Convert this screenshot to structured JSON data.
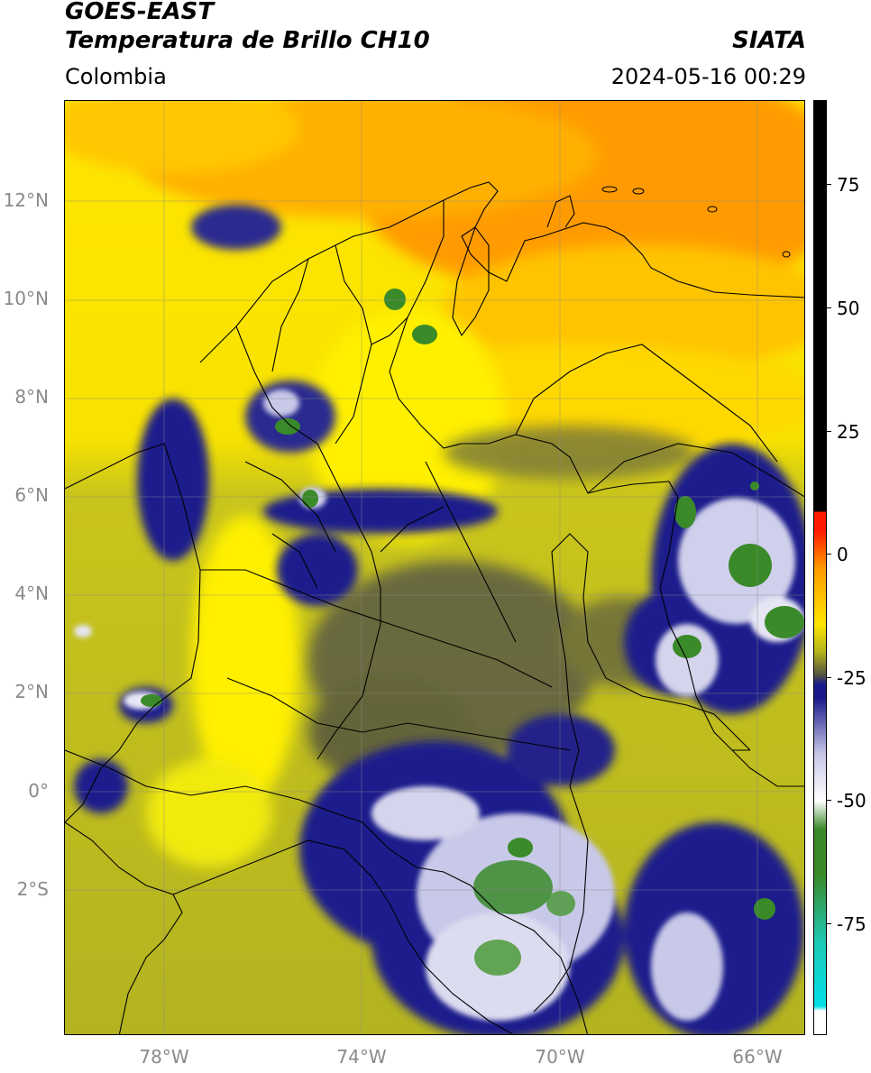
{
  "header": {
    "satellite": "GOES-EAST",
    "product": "Temperatura de Brillo CH10",
    "organization": "SIATA",
    "region": "Colombia",
    "datetime": "2024-05-16 00:29"
  },
  "axes": {
    "lat_ticks": [
      "12°N",
      "10°N",
      "8°N",
      "6°N",
      "4°N",
      "2°N",
      "0°",
      "2°S"
    ],
    "lon_ticks": [
      "78°W",
      "74°W",
      "70°W",
      "66°W"
    ]
  },
  "colorbar": {
    "ticks": [
      "75",
      "50",
      "25",
      "0",
      "-25",
      "-50",
      "-75"
    ],
    "colors": {
      "black": "#000000",
      "red": "#ff1a00",
      "orange": "#ff9900",
      "yellow": "#ffe600",
      "olive": "#b5b51c",
      "gray": "#55553f",
      "navy": "#1a1a8c",
      "lavender": "#c8c8e8",
      "white": "#ffffff",
      "green": "#3a8a2a",
      "teal": "#1ec8b4",
      "cyan": "#00e0e8"
    }
  }
}
